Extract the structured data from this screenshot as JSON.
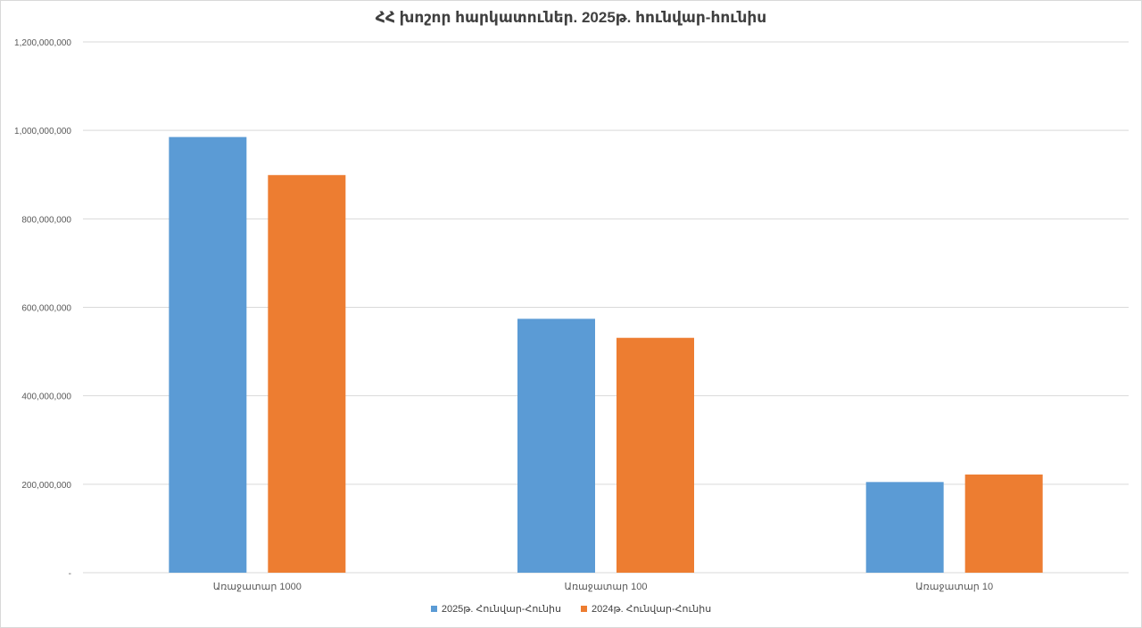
{
  "chart_data": {
    "type": "bar",
    "title": "ՀՀ խոշոր հարկատուներ. 2025թ. հունվար-հունիս",
    "categories": [
      "Առաջատար 1000",
      "Առաջատար 100",
      "Առաջատար 10"
    ],
    "series": [
      {
        "name": "2025թ. Հունվար-Հունիս",
        "color": "#5B9BD5",
        "values": [
          985000000,
          574000000,
          205000000
        ]
      },
      {
        "name": "2024թ. Հունվար-Հունիս",
        "color": "#ED7D31",
        "values": [
          899000000,
          531000000,
          222000000
        ]
      }
    ],
    "ylim": [
      0,
      1200000000
    ],
    "yticks": [
      0,
      200000000,
      400000000,
      600000000,
      800000000,
      1000000000,
      1200000000
    ],
    "ytick_labels": [
      "-",
      "200,000,000",
      "400,000,000",
      "600,000,000",
      "800,000,000",
      "1,000,000,000",
      "1,200,000,000"
    ],
    "xlabel": "",
    "ylabel": "",
    "grid": true,
    "legend_position": "bottom"
  }
}
